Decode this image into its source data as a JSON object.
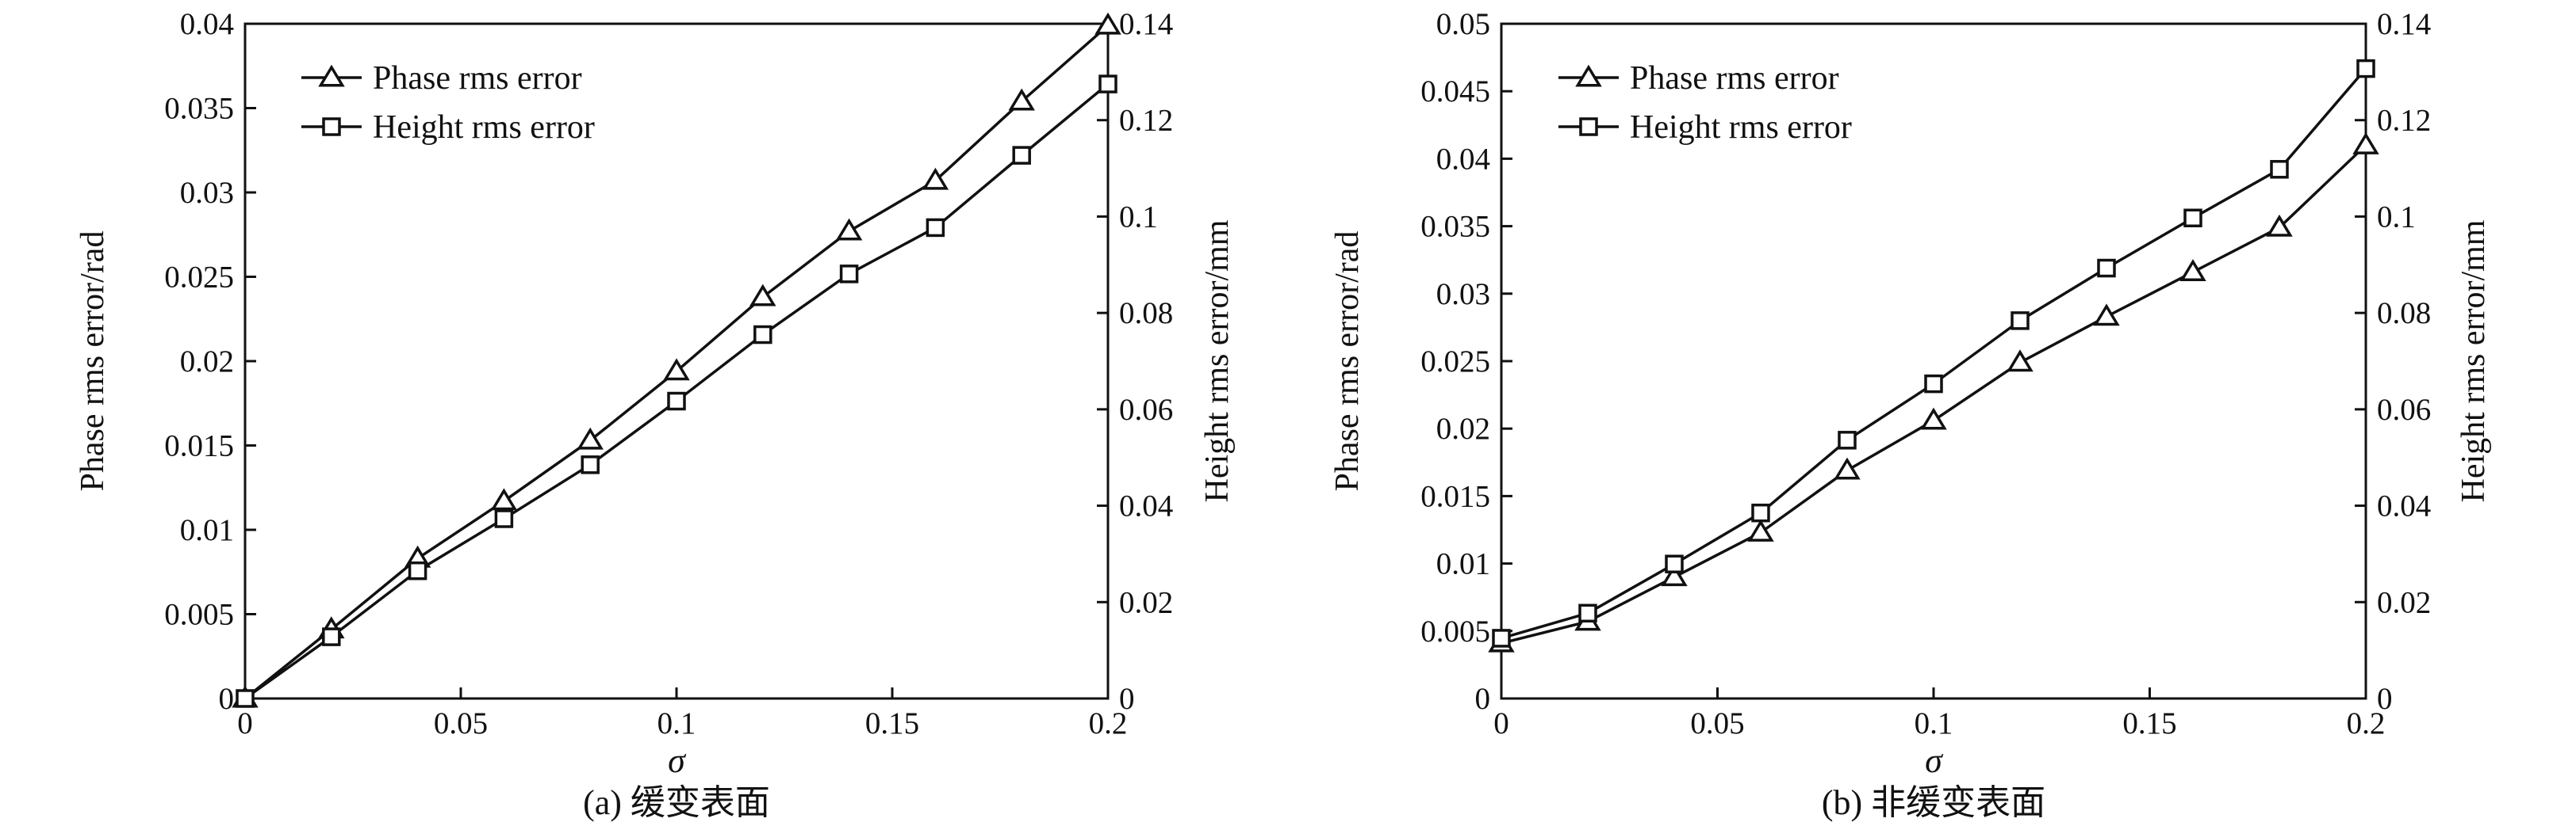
{
  "chart_data": [
    {
      "type": "line",
      "caption": "(a) 缓变表面",
      "xlabel": "σ",
      "ylabel": "Phase rms error/rad",
      "y2label": "Height rms error/mm",
      "xlim": [
        0,
        0.2
      ],
      "ylim": [
        0,
        0.04
      ],
      "y2lim": [
        0,
        0.14
      ],
      "xticks": [
        "0",
        "0.05",
        "0.1",
        "0.15",
        "0.2"
      ],
      "yticks": [
        "0",
        "0.005",
        "0.01",
        "0.015",
        "0.02",
        "0.025",
        "0.03",
        "0.035",
        "0.04"
      ],
      "y2ticks": [
        "0",
        "0.02",
        "0.04",
        "0.06",
        "0.08",
        "0.1",
        "0.12",
        "0.14"
      ],
      "legend_position": "top-left",
      "x": [
        0,
        0.02,
        0.04,
        0.06,
        0.08,
        0.1,
        0.12,
        0.14,
        0.16,
        0.18,
        0.2
      ],
      "series": [
        {
          "name": "Phase rms error",
          "axis": "left",
          "marker": "triangle",
          "values": [
            0,
            0.0041,
            0.0083,
            0.0117,
            0.0153,
            0.0194,
            0.0238,
            0.0277,
            0.0307,
            0.0354,
            0.0399
          ]
        },
        {
          "name": "Height rms error",
          "axis": "right",
          "marker": "square",
          "values": [
            0,
            0.0128,
            0.0265,
            0.0373,
            0.0485,
            0.0617,
            0.0755,
            0.0881,
            0.0977,
            0.1127,
            0.1275
          ]
        }
      ]
    },
    {
      "type": "line",
      "caption": "(b) 非缓变表面",
      "xlabel": "σ",
      "ylabel": "Phase rms error/rad",
      "y2label": "Height rms error/mm",
      "xlim": [
        0,
        0.2
      ],
      "ylim": [
        0,
        0.05
      ],
      "y2lim": [
        0,
        0.14
      ],
      "xticks": [
        "0",
        "0.05",
        "0.1",
        "0.15",
        "0.2"
      ],
      "yticks": [
        "0",
        "0.005",
        "0.01",
        "0.015",
        "0.02",
        "0.025",
        "0.03",
        "0.035",
        "0.04",
        "0.045",
        "0.05"
      ],
      "y2ticks": [
        "0",
        "0.02",
        "0.04",
        "0.06",
        "0.08",
        "0.1",
        "0.12",
        "0.14"
      ],
      "legend_position": "top-left",
      "x": [
        0,
        0.02,
        0.04,
        0.06,
        0.08,
        0.1,
        0.12,
        0.14,
        0.16,
        0.18,
        0.2
      ],
      "series": [
        {
          "name": "Phase rms error",
          "axis": "left",
          "marker": "triangle",
          "values": [
            0.0041,
            0.0057,
            0.009,
            0.0123,
            0.0169,
            0.0206,
            0.0249,
            0.0283,
            0.0316,
            0.0349,
            0.041
          ]
        },
        {
          "name": "Height rms error",
          "axis": "right",
          "marker": "square",
          "values": [
            0.0125,
            0.0177,
            0.0279,
            0.0385,
            0.0536,
            0.0653,
            0.0784,
            0.0893,
            0.0997,
            0.1098,
            0.1307
          ]
        }
      ]
    }
  ]
}
